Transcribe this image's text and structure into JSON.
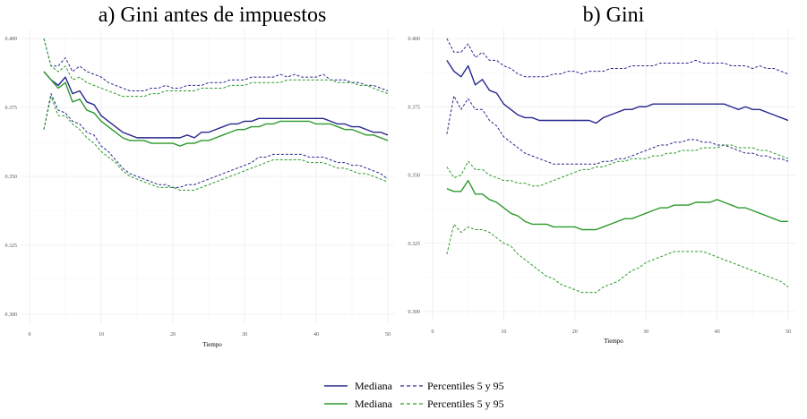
{
  "colors": {
    "blue": "#27278f",
    "green": "#2c9a2c",
    "grid": "#ebebeb"
  },
  "legend": {
    "entries": [
      {
        "label": "Mediana",
        "color": "#27278f",
        "dashed": false
      },
      {
        "label": "Percentiles 5 y 95",
        "color": "#27278f",
        "dashed": true
      },
      {
        "label": "Mediana",
        "color": "#2c9a2c",
        "dashed": false
      },
      {
        "label": "Percentiles 5 y 95",
        "color": "#2c9a2c",
        "dashed": true
      }
    ]
  },
  "chart_data": [
    {
      "type": "line",
      "title": "a) Gini antes de impuestos",
      "xlabel": "Tiempo",
      "ylabel": "",
      "xlim": [
        0,
        50
      ],
      "ylim": [
        0.3,
        0.4
      ],
      "x_ticks": [
        0,
        10,
        20,
        30,
        40,
        50
      ],
      "y_ticks": [
        0.3,
        0.325,
        0.35,
        0.375,
        0.4
      ],
      "y_tick_labels": [
        "0.300",
        "0.325",
        "0.350",
        "0.375",
        "0.400"
      ],
      "x": [
        2,
        3,
        4,
        5,
        6,
        7,
        8,
        9,
        10,
        11,
        12,
        13,
        14,
        15,
        16,
        17,
        18,
        19,
        20,
        21,
        22,
        23,
        24,
        25,
        26,
        27,
        28,
        29,
        30,
        31,
        32,
        33,
        34,
        35,
        36,
        37,
        38,
        39,
        40,
        41,
        42,
        43,
        44,
        45,
        46,
        47,
        48,
        49,
        50
      ],
      "series": [
        {
          "name": "Mediana",
          "color": "#27278f",
          "dash": false,
          "values": [
            0.388,
            0.385,
            0.383,
            0.386,
            0.38,
            0.381,
            0.377,
            0.376,
            0.372,
            0.37,
            0.368,
            0.366,
            0.365,
            0.364,
            0.364,
            0.364,
            0.364,
            0.364,
            0.364,
            0.364,
            0.365,
            0.364,
            0.366,
            0.366,
            0.367,
            0.368,
            0.369,
            0.369,
            0.37,
            0.37,
            0.371,
            0.371,
            0.371,
            0.371,
            0.371,
            0.371,
            0.371,
            0.371,
            0.371,
            0.371,
            0.37,
            0.369,
            0.369,
            0.368,
            0.368,
            0.367,
            0.366,
            0.366,
            0.365
          ]
        },
        {
          "name": "Percentiles 5 y 95",
          "color": "#27278f",
          "dash": true,
          "values": [
            0.4,
            0.39,
            0.39,
            0.393,
            0.388,
            0.39,
            0.388,
            0.387,
            0.386,
            0.384,
            0.383,
            0.382,
            0.381,
            0.381,
            0.381,
            0.382,
            0.382,
            0.383,
            0.382,
            0.382,
            0.383,
            0.383,
            0.383,
            0.384,
            0.384,
            0.384,
            0.385,
            0.385,
            0.385,
            0.386,
            0.386,
            0.386,
            0.386,
            0.387,
            0.386,
            0.387,
            0.386,
            0.386,
            0.386,
            0.387,
            0.385,
            0.385,
            0.385,
            0.384,
            0.384,
            0.383,
            0.383,
            0.382,
            0.381
          ]
        },
        {
          "name": "Percentiles 5 y 95",
          "color": "#27278f",
          "dash": true,
          "values": [
            0.367,
            0.38,
            0.374,
            0.373,
            0.37,
            0.369,
            0.366,
            0.365,
            0.361,
            0.359,
            0.356,
            0.353,
            0.351,
            0.35,
            0.349,
            0.348,
            0.347,
            0.347,
            0.346,
            0.346,
            0.347,
            0.347,
            0.348,
            0.349,
            0.35,
            0.351,
            0.352,
            0.353,
            0.354,
            0.355,
            0.357,
            0.357,
            0.358,
            0.358,
            0.358,
            0.358,
            0.358,
            0.357,
            0.357,
            0.357,
            0.356,
            0.355,
            0.355,
            0.354,
            0.354,
            0.353,
            0.352,
            0.351,
            0.349
          ]
        },
        {
          "name": "Mediana",
          "color": "#2c9a2c",
          "dash": false,
          "values": [
            0.388,
            0.385,
            0.382,
            0.384,
            0.377,
            0.378,
            0.374,
            0.373,
            0.37,
            0.368,
            0.366,
            0.364,
            0.363,
            0.363,
            0.363,
            0.362,
            0.362,
            0.362,
            0.362,
            0.361,
            0.362,
            0.362,
            0.363,
            0.363,
            0.364,
            0.365,
            0.366,
            0.367,
            0.367,
            0.368,
            0.368,
            0.369,
            0.369,
            0.37,
            0.37,
            0.37,
            0.37,
            0.37,
            0.369,
            0.369,
            0.369,
            0.368,
            0.367,
            0.367,
            0.366,
            0.365,
            0.365,
            0.364,
            0.363
          ]
        },
        {
          "name": "Percentiles 5 y 95",
          "color": "#2c9a2c",
          "dash": true,
          "values": [
            0.4,
            0.39,
            0.388,
            0.39,
            0.385,
            0.386,
            0.384,
            0.383,
            0.382,
            0.381,
            0.38,
            0.379,
            0.379,
            0.379,
            0.379,
            0.38,
            0.38,
            0.381,
            0.381,
            0.381,
            0.381,
            0.381,
            0.382,
            0.382,
            0.382,
            0.382,
            0.383,
            0.383,
            0.383,
            0.384,
            0.384,
            0.384,
            0.384,
            0.384,
            0.385,
            0.385,
            0.385,
            0.385,
            0.385,
            0.385,
            0.385,
            0.384,
            0.384,
            0.384,
            0.383,
            0.383,
            0.382,
            0.381,
            0.38
          ]
        },
        {
          "name": "Percentiles 5 y 95",
          "color": "#2c9a2c",
          "dash": true,
          "values": [
            0.367,
            0.379,
            0.372,
            0.372,
            0.369,
            0.367,
            0.364,
            0.362,
            0.359,
            0.357,
            0.355,
            0.352,
            0.35,
            0.349,
            0.348,
            0.347,
            0.346,
            0.346,
            0.346,
            0.345,
            0.345,
            0.345,
            0.346,
            0.347,
            0.348,
            0.349,
            0.35,
            0.351,
            0.352,
            0.353,
            0.354,
            0.355,
            0.356,
            0.356,
            0.356,
            0.356,
            0.356,
            0.355,
            0.355,
            0.355,
            0.354,
            0.353,
            0.353,
            0.352,
            0.351,
            0.351,
            0.35,
            0.349,
            0.348
          ]
        }
      ]
    },
    {
      "type": "line",
      "title": "b) Gini",
      "xlabel": "Tiempo",
      "ylabel": "",
      "xlim": [
        0,
        50
      ],
      "ylim": [
        0.3,
        0.4
      ],
      "x_ticks": [
        0,
        10,
        20,
        30,
        40,
        50
      ],
      "y_ticks": [
        0.3,
        0.325,
        0.35,
        0.375,
        0.4
      ],
      "y_tick_labels": [
        "0.300",
        "0.325",
        "0.350",
        "0.375",
        "0.400"
      ],
      "x": [
        2,
        3,
        4,
        5,
        6,
        7,
        8,
        9,
        10,
        11,
        12,
        13,
        14,
        15,
        16,
        17,
        18,
        19,
        20,
        21,
        22,
        23,
        24,
        25,
        26,
        27,
        28,
        29,
        30,
        31,
        32,
        33,
        34,
        35,
        36,
        37,
        38,
        39,
        40,
        41,
        42,
        43,
        44,
        45,
        46,
        47,
        48,
        49,
        50
      ],
      "series": [
        {
          "name": "Mediana",
          "color": "#27278f",
          "dash": false,
          "values": [
            0.392,
            0.388,
            0.386,
            0.39,
            0.383,
            0.385,
            0.381,
            0.38,
            0.376,
            0.374,
            0.372,
            0.371,
            0.371,
            0.37,
            0.37,
            0.37,
            0.37,
            0.37,
            0.37,
            0.37,
            0.37,
            0.369,
            0.371,
            0.372,
            0.373,
            0.374,
            0.374,
            0.375,
            0.375,
            0.376,
            0.376,
            0.376,
            0.376,
            0.376,
            0.376,
            0.376,
            0.376,
            0.376,
            0.376,
            0.376,
            0.375,
            0.374,
            0.375,
            0.374,
            0.374,
            0.373,
            0.372,
            0.371,
            0.37
          ]
        },
        {
          "name": "Percentiles 5 y 95",
          "color": "#27278f",
          "dash": true,
          "values": [
            0.4,
            0.395,
            0.395,
            0.398,
            0.393,
            0.395,
            0.392,
            0.392,
            0.39,
            0.389,
            0.387,
            0.386,
            0.386,
            0.386,
            0.386,
            0.387,
            0.387,
            0.388,
            0.388,
            0.387,
            0.388,
            0.388,
            0.388,
            0.389,
            0.389,
            0.389,
            0.39,
            0.39,
            0.39,
            0.39,
            0.391,
            0.391,
            0.391,
            0.391,
            0.391,
            0.392,
            0.391,
            0.391,
            0.391,
            0.391,
            0.39,
            0.39,
            0.39,
            0.389,
            0.39,
            0.389,
            0.389,
            0.388,
            0.387
          ]
        },
        {
          "name": "Percentiles 5 y 95",
          "color": "#27278f",
          "dash": true,
          "values": [
            0.365,
            0.379,
            0.374,
            0.378,
            0.374,
            0.374,
            0.37,
            0.368,
            0.364,
            0.362,
            0.36,
            0.358,
            0.357,
            0.356,
            0.355,
            0.354,
            0.354,
            0.354,
            0.354,
            0.354,
            0.354,
            0.354,
            0.355,
            0.355,
            0.356,
            0.356,
            0.357,
            0.358,
            0.359,
            0.36,
            0.361,
            0.361,
            0.362,
            0.362,
            0.363,
            0.363,
            0.362,
            0.362,
            0.361,
            0.361,
            0.36,
            0.359,
            0.358,
            0.358,
            0.357,
            0.357,
            0.356,
            0.356,
            0.355
          ]
        },
        {
          "name": "Mediana",
          "color": "#2c9a2c",
          "dash": false,
          "values": [
            0.345,
            0.344,
            0.344,
            0.348,
            0.343,
            0.343,
            0.341,
            0.34,
            0.338,
            0.336,
            0.335,
            0.333,
            0.332,
            0.332,
            0.332,
            0.331,
            0.331,
            0.331,
            0.331,
            0.33,
            0.33,
            0.33,
            0.331,
            0.332,
            0.333,
            0.334,
            0.334,
            0.335,
            0.336,
            0.337,
            0.338,
            0.338,
            0.339,
            0.339,
            0.339,
            0.34,
            0.34,
            0.34,
            0.341,
            0.34,
            0.339,
            0.338,
            0.338,
            0.337,
            0.336,
            0.335,
            0.334,
            0.333,
            0.333
          ]
        },
        {
          "name": "Percentiles 5 y 95",
          "color": "#2c9a2c",
          "dash": true,
          "values": [
            0.353,
            0.349,
            0.35,
            0.355,
            0.352,
            0.352,
            0.35,
            0.349,
            0.348,
            0.348,
            0.347,
            0.347,
            0.346,
            0.346,
            0.347,
            0.348,
            0.349,
            0.35,
            0.351,
            0.352,
            0.352,
            0.353,
            0.353,
            0.354,
            0.355,
            0.355,
            0.356,
            0.356,
            0.356,
            0.357,
            0.357,
            0.358,
            0.358,
            0.359,
            0.359,
            0.359,
            0.36,
            0.36,
            0.36,
            0.361,
            0.361,
            0.36,
            0.36,
            0.36,
            0.359,
            0.359,
            0.358,
            0.357,
            0.356
          ]
        },
        {
          "name": "Percentiles 5 y 95",
          "color": "#2c9a2c",
          "dash": true,
          "values": [
            0.321,
            0.332,
            0.329,
            0.331,
            0.33,
            0.33,
            0.329,
            0.327,
            0.325,
            0.324,
            0.321,
            0.319,
            0.317,
            0.315,
            0.313,
            0.312,
            0.31,
            0.309,
            0.308,
            0.307,
            0.307,
            0.307,
            0.309,
            0.31,
            0.311,
            0.313,
            0.315,
            0.316,
            0.318,
            0.319,
            0.32,
            0.321,
            0.322,
            0.322,
            0.322,
            0.322,
            0.322,
            0.321,
            0.32,
            0.319,
            0.318,
            0.317,
            0.316,
            0.315,
            0.314,
            0.313,
            0.312,
            0.311,
            0.309
          ]
        }
      ]
    }
  ]
}
